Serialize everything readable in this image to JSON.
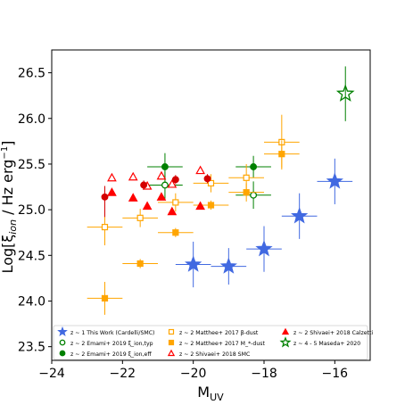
{
  "chart_data": {
    "type": "scatter",
    "xlabel": "M_UV",
    "ylabel": "Log[ξ_ion / Hz erg⁻¹]",
    "xlim": [
      -24,
      -15
    ],
    "ylim": [
      23.35,
      26.75
    ],
    "xticks": [
      -24,
      -22,
      -20,
      -18,
      -16
    ],
    "xtick_labels": [
      "−24",
      "−22",
      "−20",
      "−18",
      "−16"
    ],
    "yticks": [
      23.5,
      24.0,
      24.5,
      25.0,
      25.5,
      26.0,
      26.5
    ],
    "ytick_labels": [
      "23.5",
      "24.0",
      "24.5",
      "25.0",
      "25.5",
      "26.0",
      "26.5"
    ],
    "grid": false,
    "legend_position": "bottom",
    "series": [
      {
        "name": "z ~ 1 This Work (Cardelli/SMC)",
        "marker": "star",
        "color": "#4169e1",
        "filled": true,
        "points": [
          {
            "x": -20.0,
            "y": 24.4,
            "xerr": 0.5,
            "yerr": 0.25
          },
          {
            "x": -19.0,
            "y": 24.38,
            "xerr": 0.5,
            "yerr": 0.2
          },
          {
            "x": -18.0,
            "y": 24.57,
            "xerr": 0.5,
            "yerr": 0.25
          },
          {
            "x": -17.0,
            "y": 24.93,
            "xerr": 0.5,
            "yerr": 0.25
          },
          {
            "x": -16.0,
            "y": 25.31,
            "xerr": 0.5,
            "yerr": 0.25
          }
        ]
      },
      {
        "name": "z ~ 2 Emami+ 2019 ξ_ion,typ",
        "marker": "circle",
        "color": "#008000",
        "filled": false,
        "points": [
          {
            "x": -20.8,
            "y": 25.27,
            "xerr": 0.5,
            "yerr": 0.15
          },
          {
            "x": -18.3,
            "y": 25.16,
            "xerr": 0.5,
            "yerr": 0.15
          }
        ]
      },
      {
        "name": "z ~ 2 Emami+ 2019 ξ_ion,eff",
        "marker": "circle",
        "color": "#008000",
        "filled": true,
        "points": [
          {
            "x": -20.8,
            "y": 25.47,
            "xerr": 0.5,
            "yerr": 0.15
          },
          {
            "x": -18.3,
            "y": 25.47,
            "xerr": 0.5,
            "yerr": 0.12
          }
        ]
      },
      {
        "name": "z ~ 2 Matthee+ 2017 β-dust",
        "marker": "square",
        "color": "#ffa500",
        "filled": false,
        "points": [
          {
            "x": -22.5,
            "y": 24.81,
            "xerr": 0.5,
            "yerr": 0.2
          },
          {
            "x": -21.5,
            "y": 24.91,
            "xerr": 0.5,
            "yerr": 0.1
          },
          {
            "x": -20.5,
            "y": 25.08,
            "xerr": 0.5,
            "yerr": 0.1
          },
          {
            "x": -19.5,
            "y": 25.29,
            "xerr": 0.5,
            "yerr": 0.1
          },
          {
            "x": -18.5,
            "y": 25.35,
            "xerr": 0.5,
            "yerr": 0.15
          },
          {
            "x": -17.5,
            "y": 25.74,
            "xerr": 0.5,
            "yerr": 0.3
          }
        ]
      },
      {
        "name": "z ~ 2 Matthee+ 2017 M_*-dust",
        "marker": "square",
        "color": "#ffa500",
        "filled": true,
        "points": [
          {
            "x": -22.5,
            "y": 24.03,
            "xerr": 0.5,
            "yerr": 0.18
          },
          {
            "x": -21.5,
            "y": 24.41,
            "xerr": 0.5,
            "yerr": 0.05
          },
          {
            "x": -20.5,
            "y": 24.75,
            "xerr": 0.5,
            "yerr": 0.05
          },
          {
            "x": -19.5,
            "y": 25.05,
            "xerr": 0.5,
            "yerr": 0.05
          },
          {
            "x": -18.5,
            "y": 25.19,
            "xerr": 0.5,
            "yerr": 0.1
          },
          {
            "x": -17.5,
            "y": 25.61,
            "xerr": 0.5,
            "yerr": 0.15
          }
        ]
      },
      {
        "name": "z ~ 2 Shivaei+ 2018 SMC",
        "marker": "triangle",
        "color": "#ff0000",
        "filled": false,
        "points": [
          {
            "x": -22.3,
            "y": 25.35
          },
          {
            "x": -21.7,
            "y": 25.36
          },
          {
            "x": -21.3,
            "y": 25.26
          },
          {
            "x": -20.9,
            "y": 25.37
          },
          {
            "x": -20.6,
            "y": 25.28
          },
          {
            "x": -19.8,
            "y": 25.43
          }
        ]
      },
      {
        "name": "z ~ 2 Shivaei+ 2018 Calzetti",
        "marker": "triangle",
        "color": "#ff0000",
        "filled": true,
        "points": [
          {
            "x": -22.3,
            "y": 25.19
          },
          {
            "x": -21.7,
            "y": 25.13
          },
          {
            "x": -21.3,
            "y": 25.04
          },
          {
            "x": -20.9,
            "y": 25.14
          },
          {
            "x": -20.6,
            "y": 24.98
          },
          {
            "x": -19.8,
            "y": 25.04
          }
        ]
      },
      {
        "name": "z ~ 4 - 5 Maseda+ 2020",
        "marker": "star",
        "color": "#008000",
        "filled": false,
        "points": [
          {
            "x": -15.7,
            "y": 26.27,
            "yerr": 0.3
          }
        ]
      },
      {
        "name": "",
        "marker": "circle",
        "color": "#d40000",
        "filled": true,
        "legend": false,
        "points": [
          {
            "x": -22.5,
            "y": 25.14,
            "yerr": [
              0.22,
              0.12
            ]
          },
          {
            "x": -21.4,
            "y": 25.27,
            "yerr": 0.05
          },
          {
            "x": -20.5,
            "y": 25.33,
            "yerr": 0.05
          },
          {
            "x": -19.6,
            "y": 25.34,
            "yerr": 0.05
          }
        ]
      }
    ],
    "legend": [
      {
        "label": "z ~ 1 This Work (Cardelli/SMC)",
        "marker": "star",
        "color": "#4169e1",
        "filled": true
      },
      {
        "label": "z ~ 2 Emami+ 2019 ξ_ion,typ",
        "marker": "circle",
        "color": "#008000",
        "filled": false
      },
      {
        "label": "z ~ 2 Emami+ 2019 ξ_ion,eff",
        "marker": "circle",
        "color": "#008000",
        "filled": true
      },
      {
        "label": "z ~ 2 Matthee+ 2017 β-dust",
        "marker": "square",
        "color": "#ffa500",
        "filled": false
      },
      {
        "label": "z ~ 2 Matthee+ 2017 M_*-dust",
        "marker": "square",
        "color": "#ffa500",
        "filled": true
      },
      {
        "label": "z ~ 2 Shivaei+ 2018 SMC",
        "marker": "triangle",
        "color": "#ff0000",
        "filled": false
      },
      {
        "label": "z ~ 2 Shivaei+ 2018 Calzetti",
        "marker": "triangle",
        "color": "#ff0000",
        "filled": true
      },
      {
        "label": "z ~ 4 - 5 Maseda+ 2020",
        "marker": "star",
        "color": "#008000",
        "filled": false
      }
    ]
  }
}
